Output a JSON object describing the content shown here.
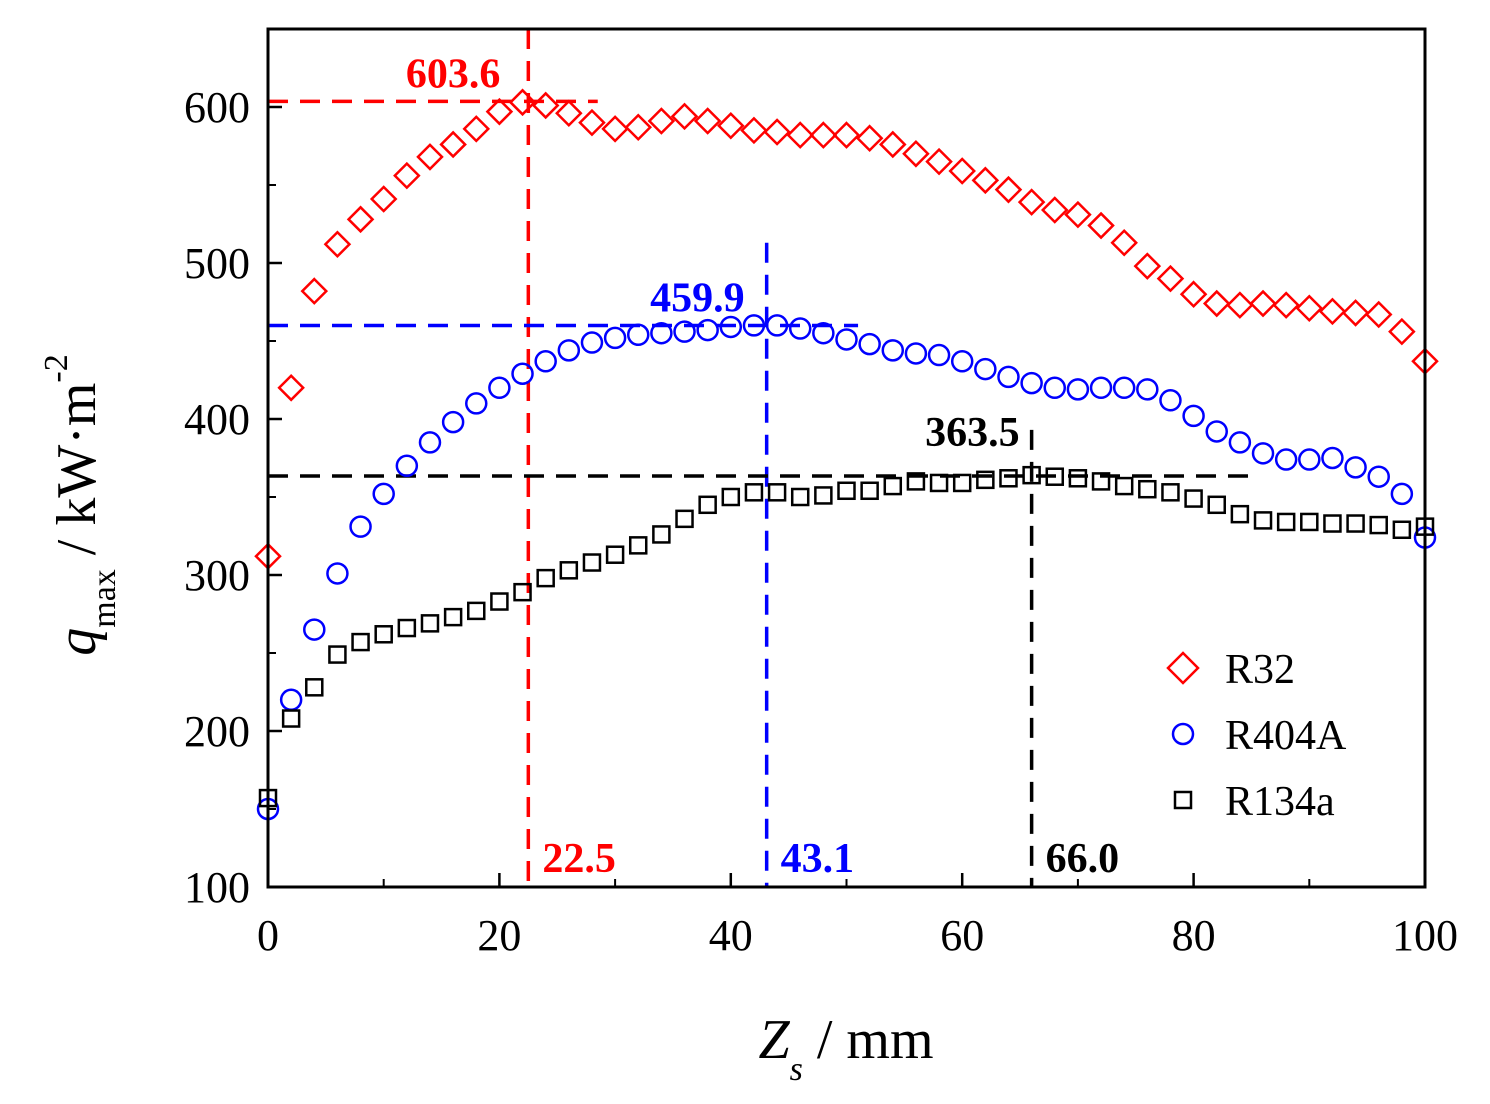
{
  "chart_data": {
    "type": "scatter",
    "title": "",
    "xlabel": {
      "main": "Z",
      "sub": "s",
      "unit": " / mm"
    },
    "ylabel": {
      "main": "q",
      "sub": "max",
      "unit": " / kW·m",
      "sup": "-2"
    },
    "xlim": [
      0,
      100
    ],
    "ylim": [
      100,
      650
    ],
    "xticks": [
      0,
      20,
      40,
      60,
      80,
      100
    ],
    "yticks": [
      100,
      200,
      300,
      400,
      500,
      600
    ],
    "grid": false,
    "legend_position": "bottom-right",
    "series": [
      {
        "name": "R32",
        "marker": "diamond",
        "color": "#ff0000",
        "x": [
          0,
          2,
          4,
          6,
          8,
          10,
          12,
          14,
          16,
          18,
          20,
          22,
          24,
          26,
          28,
          30,
          32,
          34,
          36,
          38,
          40,
          42,
          44,
          46,
          48,
          50,
          52,
          54,
          56,
          58,
          60,
          62,
          64,
          66,
          68,
          70,
          72,
          74,
          76,
          78,
          80,
          82,
          84,
          86,
          88,
          90,
          92,
          94,
          96,
          98,
          100
        ],
        "y": [
          312,
          420,
          482,
          512,
          528,
          541,
          556,
          568,
          576,
          586,
          597,
          603,
          601,
          596,
          590,
          586,
          587,
          591,
          594,
          591,
          588,
          585,
          584,
          582,
          582,
          582,
          580,
          576,
          570,
          565,
          559,
          553,
          547,
          539,
          534,
          531,
          524,
          513,
          498,
          490,
          480,
          474,
          473,
          474,
          473,
          471,
          469,
          468,
          467,
          456,
          437
        ]
      },
      {
        "name": "R404A",
        "marker": "circle",
        "color": "#0000ff",
        "x": [
          0,
          2,
          4,
          6,
          8,
          10,
          12,
          14,
          16,
          18,
          20,
          22,
          24,
          26,
          28,
          30,
          32,
          34,
          36,
          38,
          40,
          42,
          44,
          46,
          48,
          50,
          52,
          54,
          56,
          58,
          60,
          62,
          64,
          66,
          68,
          70,
          72,
          74,
          76,
          78,
          80,
          82,
          84,
          86,
          88,
          90,
          92,
          94,
          96,
          98,
          100
        ],
        "y": [
          150,
          220,
          265,
          301,
          331,
          352,
          370,
          385,
          398,
          410,
          420,
          429,
          437,
          444,
          449,
          452,
          454,
          455,
          456,
          457,
          459,
          460,
          460,
          458,
          455,
          451,
          448,
          444,
          442,
          441,
          437,
          432,
          427,
          423,
          420,
          419,
          420,
          420,
          419,
          412,
          402,
          392,
          385,
          378,
          374,
          374,
          375,
          369,
          363,
          352,
          324
        ]
      },
      {
        "name": "R134a",
        "marker": "square",
        "color": "#000000",
        "x": [
          0,
          2,
          4,
          6,
          8,
          10,
          12,
          14,
          16,
          18,
          20,
          22,
          24,
          26,
          28,
          30,
          32,
          34,
          36,
          38,
          40,
          42,
          44,
          46,
          48,
          50,
          52,
          54,
          56,
          58,
          60,
          62,
          64,
          66,
          68,
          70,
          72,
          74,
          76,
          78,
          80,
          82,
          84,
          86,
          88,
          90,
          92,
          94,
          96,
          98,
          100
        ],
        "y": [
          157,
          208,
          228,
          249,
          257,
          262,
          266,
          269,
          273,
          277,
          283,
          289,
          298,
          303,
          308,
          313,
          319,
          326,
          336,
          345,
          350,
          353,
          353,
          350,
          351,
          354,
          354,
          357,
          360,
          359,
          359,
          361,
          362,
          364,
          363,
          362,
          360,
          357,
          355,
          353,
          349,
          345,
          339,
          335,
          334,
          334,
          333,
          333,
          332,
          329,
          331
        ]
      }
    ],
    "reference_lines": [
      {
        "series": "R32",
        "color": "#ff0000",
        "peak_x": 22.5,
        "peak_y": 603.6,
        "h_xend": 28.5,
        "v_ytop": 650,
        "x_label": "22.5",
        "y_label": "603.6"
      },
      {
        "series": "R404A",
        "color": "#0000ff",
        "peak_x": 43.1,
        "peak_y": 459.9,
        "h_xend": 51,
        "v_ytop": 513,
        "x_label": "43.1",
        "y_label": "459.9"
      },
      {
        "series": "R134a",
        "color": "#000000",
        "peak_x": 66.0,
        "peak_y": 363.5,
        "h_xend": 85,
        "v_ytop": 393,
        "x_label": "66.0",
        "y_label": "363.5"
      }
    ]
  }
}
